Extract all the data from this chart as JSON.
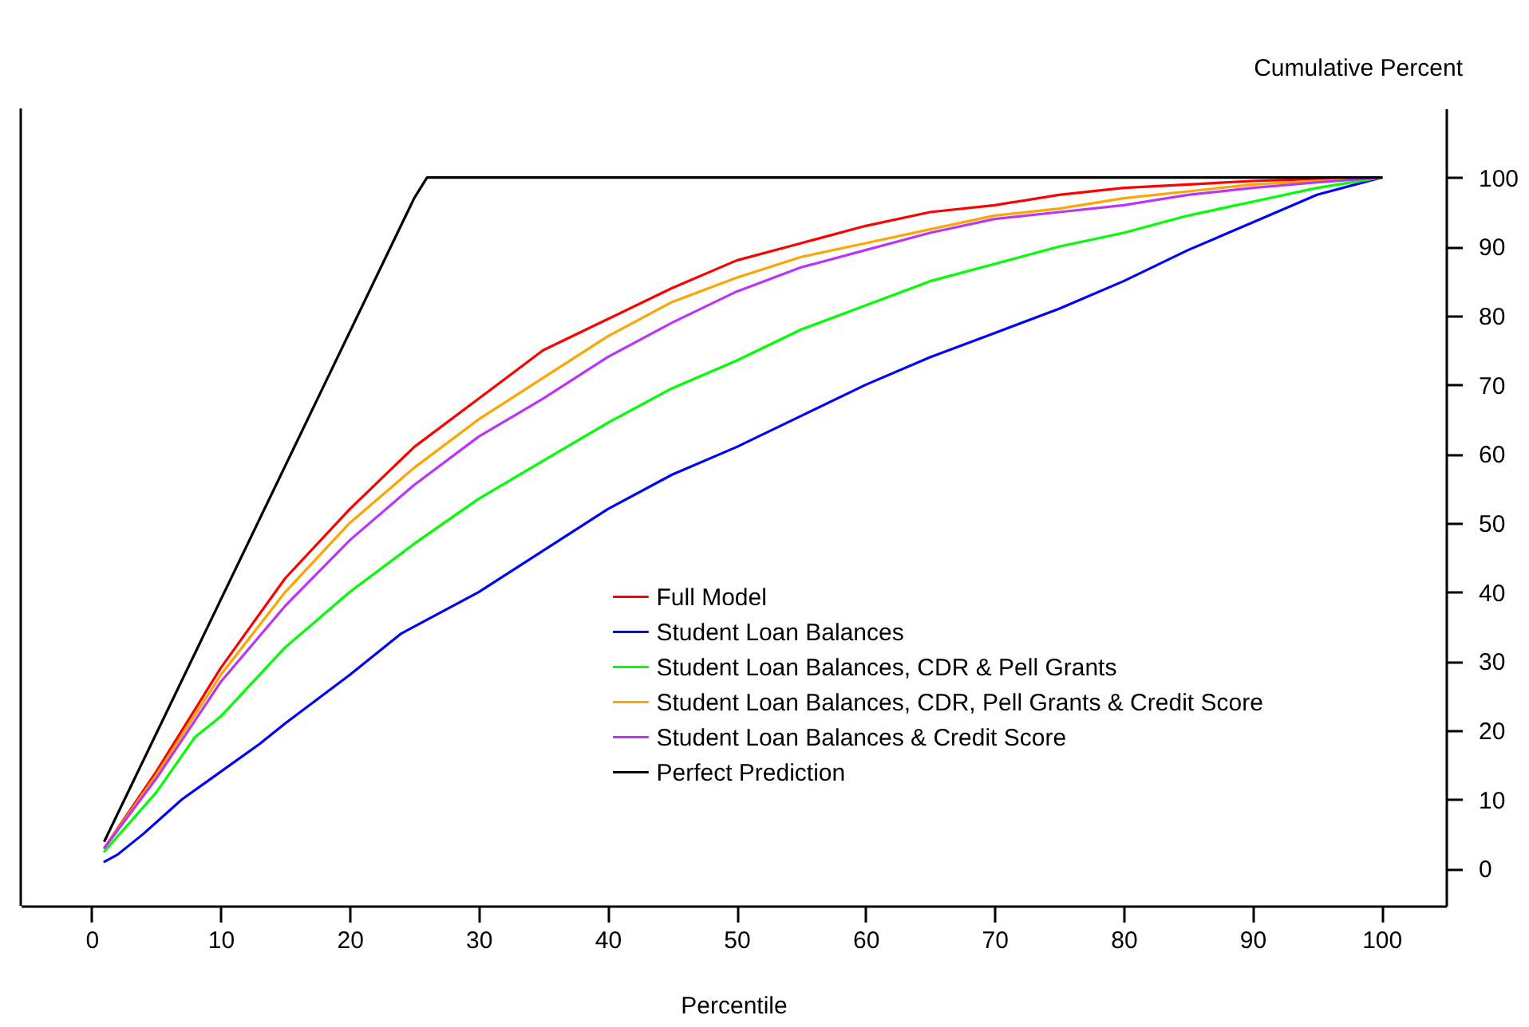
{
  "chart_data": {
    "type": "line",
    "xlabel": "Percentile",
    "ylabel": "Cumulative Percent",
    "xlim": [
      -5.5,
      105
    ],
    "ylim": [
      -5.4,
      110
    ],
    "xticks": [
      0,
      10,
      20,
      30,
      40,
      50,
      60,
      70,
      80,
      90,
      100
    ],
    "yticks": [
      0,
      10,
      20,
      30,
      40,
      50,
      60,
      70,
      80,
      90,
      100
    ],
    "grid": false,
    "legend": "center",
    "line_style": "solid",
    "marker": "none",
    "series": [
      {
        "name": "Full Model",
        "color": "#ff0000",
        "x": [
          1,
          5,
          10,
          15,
          20,
          25,
          30,
          35,
          40,
          45,
          50,
          55,
          60,
          65,
          70,
          75,
          80,
          85,
          90,
          95,
          100
        ],
        "values": [
          3,
          14,
          29,
          42,
          52,
          61,
          68,
          75,
          79.5,
          84,
          88,
          90.5,
          93,
          95,
          96,
          97.5,
          98.5,
          99,
          99.5,
          99.8,
          100
        ]
      },
      {
        "name": "Student Loan Balances",
        "color": "#0000ff",
        "x": [
          1,
          2,
          4,
          7,
          10,
          13,
          15,
          20,
          22,
          24,
          30,
          35,
          40,
          45,
          50,
          55,
          60,
          65,
          70,
          75,
          80,
          85,
          90,
          95,
          100
        ],
        "values": [
          1,
          2,
          5,
          10,
          14,
          18,
          21,
          28,
          31,
          34,
          40,
          46,
          52,
          57,
          61,
          65.5,
          70,
          74,
          77.5,
          81,
          85,
          89.5,
          93.5,
          97.5,
          100
        ]
      },
      {
        "name": "Student Loan Balances, CDR & Pell Grants",
        "color": "#00ff00",
        "x": [
          1,
          5,
          8,
          10,
          15,
          20,
          25,
          30,
          35,
          40,
          45,
          50,
          55,
          60,
          65,
          70,
          75,
          80,
          85,
          90,
          95,
          100
        ],
        "values": [
          2.5,
          11,
          19,
          22,
          32,
          40,
          47,
          53.5,
          59,
          64.5,
          69.5,
          73.5,
          78,
          81.5,
          85,
          87.5,
          90,
          92,
          94.5,
          96.5,
          98.5,
          100
        ]
      },
      {
        "name": "Student Loan Balances, CDR, Pell Grants & Credit Score",
        "color": "#ffa500",
        "x": [
          1,
          5,
          10,
          15,
          20,
          25,
          30,
          35,
          40,
          45,
          50,
          55,
          60,
          65,
          70,
          75,
          80,
          85,
          90,
          95,
          100
        ],
        "values": [
          3,
          13.5,
          28,
          40,
          50,
          58,
          65,
          71,
          77,
          82,
          85.5,
          88.5,
          90.5,
          92.5,
          94.5,
          95.5,
          97,
          98,
          99,
          99.5,
          100
        ]
      },
      {
        "name": "Student Loan Balances & Credit Score",
        "color": "#bb33ff",
        "x": [
          1,
          5,
          10,
          15,
          20,
          25,
          30,
          35,
          40,
          45,
          50,
          55,
          60,
          65,
          70,
          75,
          80,
          85,
          90,
          95,
          100
        ],
        "values": [
          3,
          13,
          27,
          38,
          47.5,
          55.5,
          62.5,
          68,
          74,
          79,
          83.5,
          87,
          89.5,
          92,
          94,
          95,
          96,
          97.5,
          98.5,
          99.3,
          100
        ]
      },
      {
        "name": "Perfect Prediction",
        "color": "#000000",
        "x": [
          1,
          25,
          26,
          100
        ],
        "values": [
          4,
          97,
          100,
          100
        ]
      }
    ]
  }
}
